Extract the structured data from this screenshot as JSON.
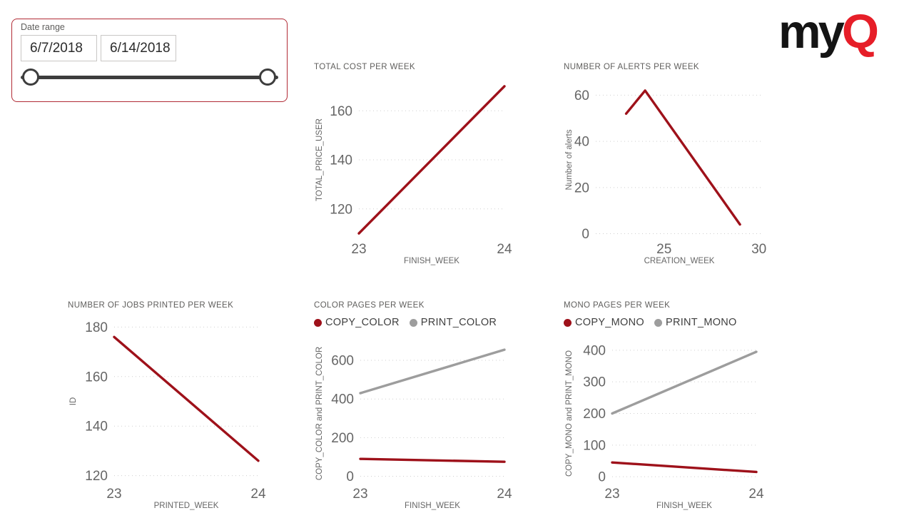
{
  "slicer": {
    "label": "Date range",
    "start_date": "6/7/2018",
    "end_date": "6/14/2018",
    "border_color": "#b12b35"
  },
  "logo": {
    "text_black": "my",
    "text_red": "Q",
    "red": "#e61e28"
  },
  "colors": {
    "series_red": "#9e111a",
    "series_gray": "#9d9d9d"
  },
  "chart_data": [
    {
      "type": "line",
      "title": "TOTAL COST PER WEEK",
      "xlabel": "FINISH_WEEK",
      "ylabel": "TOTAL_PRICE_USER",
      "xlim": [
        23,
        24
      ],
      "ylim": [
        108,
        172
      ],
      "xticks": [
        23,
        24
      ],
      "yticks": [
        120,
        140,
        160
      ],
      "grid": "horizontal-dotted",
      "legend": [],
      "series": [
        {
          "name": "TOTAL_PRICE_USER",
          "color": "#9e111a",
          "points": [
            [
              23,
              110
            ],
            [
              24,
              170
            ]
          ]
        }
      ]
    },
    {
      "type": "line",
      "title": "NUMBER OF ALERTS PER WEEK",
      "xlabel": "CREATION_WEEK",
      "ylabel": "Number of alerts",
      "xlim": [
        21.4,
        30.2
      ],
      "ylim": [
        -2,
        66
      ],
      "xticks": [
        25,
        30
      ],
      "yticks": [
        0,
        20,
        40,
        60
      ],
      "grid": "horizontal-dotted",
      "legend": [],
      "series": [
        {
          "name": "Number of alerts",
          "color": "#9e111a",
          "points": [
            [
              23,
              52
            ],
            [
              24,
              62
            ],
            [
              29,
              4
            ]
          ]
        }
      ]
    },
    {
      "type": "line",
      "title": "NUMBER OF JOBS PRINTED PER WEEK",
      "xlabel": "PRINTED_WEEK",
      "ylabel": "ID",
      "xlim": [
        23,
        24
      ],
      "ylim": [
        117,
        183
      ],
      "xticks": [
        23,
        24
      ],
      "yticks": [
        120,
        140,
        160,
        180
      ],
      "grid": "horizontal-dotted",
      "legend": [],
      "series": [
        {
          "name": "ID",
          "color": "#9e111a",
          "points": [
            [
              23,
              176
            ],
            [
              24,
              126
            ]
          ]
        }
      ]
    },
    {
      "type": "line",
      "title": "COLOR PAGES PER WEEK",
      "xlabel": "FINISH_WEEK",
      "ylabel": "COPY_COLOR and PRINT_COLOR",
      "xlim": [
        23,
        24
      ],
      "ylim": [
        -35,
        685
      ],
      "xticks": [
        23,
        24
      ],
      "yticks": [
        0,
        200,
        400,
        600
      ],
      "grid": "horizontal-dotted",
      "legend": [
        {
          "label": "COPY_COLOR",
          "color": "#9e111a"
        },
        {
          "label": "PRINT_COLOR",
          "color": "#9d9d9d"
        }
      ],
      "series": [
        {
          "name": "COPY_COLOR",
          "color": "#9e111a",
          "points": [
            [
              23,
              90
            ],
            [
              24,
              75
            ]
          ]
        },
        {
          "name": "PRINT_COLOR",
          "color": "#9d9d9d",
          "points": [
            [
              23,
              430
            ],
            [
              24,
              655
            ]
          ]
        }
      ]
    },
    {
      "type": "line",
      "title": "MONO PAGES PER WEEK",
      "xlabel": "FINISH_WEEK",
      "ylabel": "COPY_MONO and PRINT_MONO",
      "xlim": [
        23,
        24
      ],
      "ylim": [
        -20,
        420
      ],
      "xticks": [
        23,
        24
      ],
      "yticks": [
        0,
        100,
        200,
        300,
        400
      ],
      "grid": "horizontal-dotted",
      "legend": [
        {
          "label": "COPY_MONO",
          "color": "#9e111a"
        },
        {
          "label": "PRINT_MONO",
          "color": "#9d9d9d"
        }
      ],
      "series": [
        {
          "name": "COPY_MONO",
          "color": "#9e111a",
          "points": [
            [
              23,
              45
            ],
            [
              24,
              15
            ]
          ]
        },
        {
          "name": "PRINT_MONO",
          "color": "#9d9d9d",
          "points": [
            [
              23,
              200
            ],
            [
              24,
              395
            ]
          ]
        }
      ]
    }
  ]
}
